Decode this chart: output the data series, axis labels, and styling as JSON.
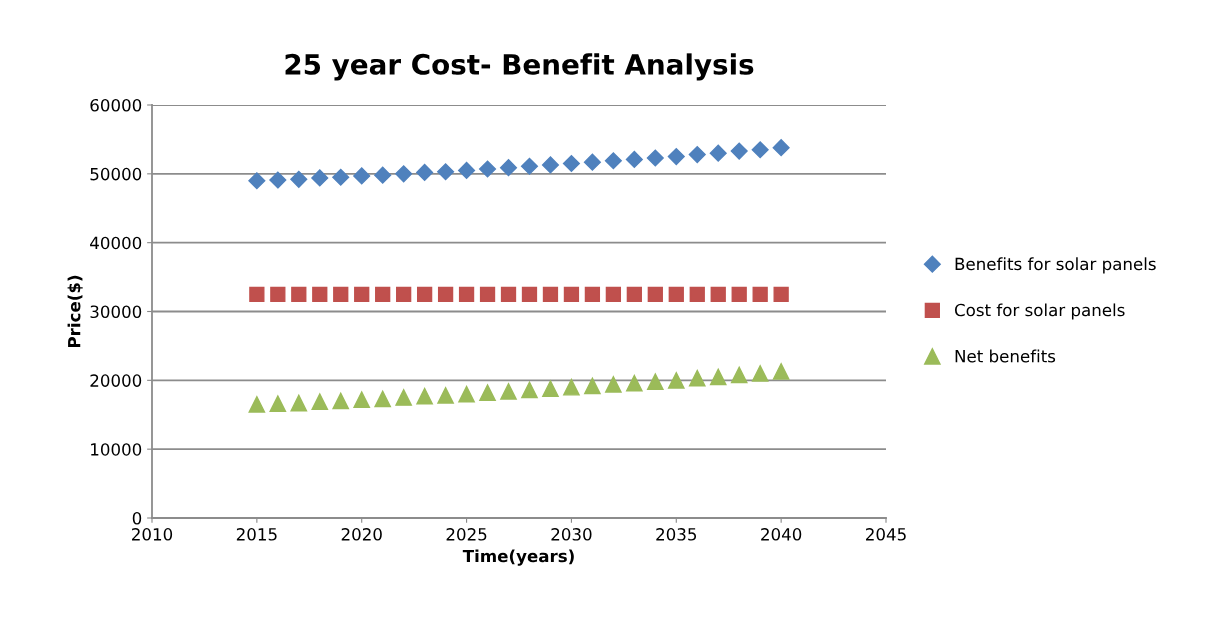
{
  "chart_data": {
    "type": "scatter",
    "title": "25 year Cost- Benefit Analysis",
    "xlabel": "Time(years)",
    "ylabel": "Price($)",
    "x": [
      2015,
      2016,
      2017,
      2018,
      2019,
      2020,
      2021,
      2022,
      2023,
      2024,
      2025,
      2026,
      2027,
      2028,
      2029,
      2030,
      2031,
      2032,
      2033,
      2034,
      2035,
      2036,
      2037,
      2038,
      2039,
      2040
    ],
    "series": [
      {
        "name": "Benefits for solar panels",
        "color": "#4f81bd",
        "marker": "diamond",
        "values": [
          49000,
          49100,
          49200,
          49400,
          49500,
          49700,
          49800,
          50000,
          50200,
          50300,
          50500,
          50700,
          50900,
          51100,
          51300,
          51500,
          51700,
          51900,
          52100,
          52300,
          52500,
          52800,
          53000,
          53300,
          53500,
          53800
        ]
      },
      {
        "name": "Cost for solar panels",
        "color": "#c0504d",
        "marker": "square",
        "values": [
          32500,
          32500,
          32500,
          32500,
          32500,
          32500,
          32500,
          32500,
          32500,
          32500,
          32500,
          32500,
          32500,
          32500,
          32500,
          32500,
          32500,
          32500,
          32500,
          32500,
          32500,
          32500,
          32500,
          32500,
          32500,
          32500
        ]
      },
      {
        "name": "Net benefits",
        "color": "#9bbb59",
        "marker": "triangle",
        "values": [
          16500,
          16600,
          16700,
          16900,
          17000,
          17200,
          17300,
          17500,
          17700,
          17800,
          18000,
          18200,
          18400,
          18600,
          18800,
          19000,
          19200,
          19400,
          19600,
          19800,
          20000,
          20300,
          20500,
          20800,
          21000,
          21300
        ]
      }
    ],
    "xlim": [
      2010,
      2045
    ],
    "xticks": [
      2010,
      2015,
      2020,
      2025,
      2030,
      2035,
      2040,
      2045
    ],
    "ylim": [
      0,
      60000
    ],
    "yticks": [
      0,
      10000,
      20000,
      30000,
      40000,
      50000,
      60000
    ],
    "grid": "y",
    "legend": "right"
  }
}
